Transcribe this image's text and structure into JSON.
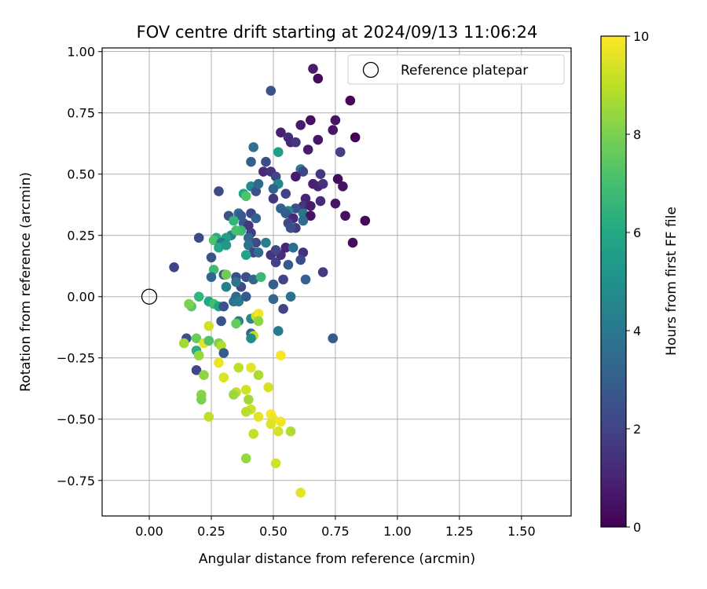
{
  "chart_data": {
    "type": "scatter",
    "title": "FOV centre drift starting at 2024/09/13 11:06:24",
    "xlabel": "Angular distance from reference (arcmin)",
    "ylabel": "Rotation from reference (arcmin)",
    "xlim": [
      -0.19,
      1.7
    ],
    "ylim": [
      -0.895,
      1.015
    ],
    "xticks": [
      0.0,
      0.25,
      0.5,
      0.75,
      1.0,
      1.25,
      1.5
    ],
    "xtick_labels": [
      "0.00",
      "0.25",
      "0.50",
      "0.75",
      "1.00",
      "1.25",
      "1.50"
    ],
    "yticks": [
      -0.75,
      -0.5,
      -0.25,
      0.0,
      0.25,
      0.5,
      0.75,
      1.0
    ],
    "ytick_labels": [
      "−0.75",
      "−0.50",
      "−0.25",
      "0.00",
      "0.25",
      "0.50",
      "0.75",
      "1.00"
    ],
    "grid": true,
    "legend": {
      "position": "top-right",
      "label": "Reference platepar"
    },
    "reference_point": {
      "x": 0.0,
      "y": 0.0
    },
    "colorbar": {
      "label": "Hours from first FF file",
      "colormap": "viridis",
      "range": [
        0,
        10
      ],
      "ticks": [
        0,
        2,
        4,
        6,
        8,
        10
      ],
      "tick_labels": [
        "0",
        "2",
        "4",
        "6",
        "8",
        "10"
      ]
    },
    "points": [
      {
        "x": 0.66,
        "y": 0.93,
        "h": 0.8
      },
      {
        "x": 0.68,
        "y": 0.89,
        "h": 0.3
      },
      {
        "x": 0.81,
        "y": 0.8,
        "h": 0.2
      },
      {
        "x": 0.49,
        "y": 0.84,
        "h": 2.6
      },
      {
        "x": 0.75,
        "y": 0.72,
        "h": 0.5
      },
      {
        "x": 0.74,
        "y": 0.68,
        "h": 0.6
      },
      {
        "x": 0.83,
        "y": 0.65,
        "h": 0.1
      },
      {
        "x": 0.65,
        "y": 0.72,
        "h": 0.4
      },
      {
        "x": 0.61,
        "y": 0.7,
        "h": 0.7
      },
      {
        "x": 0.53,
        "y": 0.67,
        "h": 0.9
      },
      {
        "x": 0.56,
        "y": 0.65,
        "h": 1.3
      },
      {
        "x": 0.57,
        "y": 0.63,
        "h": 1.1
      },
      {
        "x": 0.59,
        "y": 0.63,
        "h": 1.5
      },
      {
        "x": 0.68,
        "y": 0.64,
        "h": 0.6
      },
      {
        "x": 0.64,
        "y": 0.6,
        "h": 0.8
      },
      {
        "x": 0.77,
        "y": 0.59,
        "h": 1.9
      },
      {
        "x": 0.52,
        "y": 0.59,
        "h": 5.5
      },
      {
        "x": 0.42,
        "y": 0.61,
        "h": 3.7
      },
      {
        "x": 0.47,
        "y": 0.55,
        "h": 2.3
      },
      {
        "x": 0.41,
        "y": 0.55,
        "h": 3.0
      },
      {
        "x": 0.46,
        "y": 0.51,
        "h": 1.2
      },
      {
        "x": 0.49,
        "y": 0.51,
        "h": 1.4
      },
      {
        "x": 0.51,
        "y": 0.49,
        "h": 2.1
      },
      {
        "x": 0.61,
        "y": 0.52,
        "h": 4.2
      },
      {
        "x": 0.62,
        "y": 0.51,
        "h": 2.0
      },
      {
        "x": 0.59,
        "y": 0.49,
        "h": 0.7
      },
      {
        "x": 0.69,
        "y": 0.5,
        "h": 1.6
      },
      {
        "x": 0.76,
        "y": 0.48,
        "h": 0.3
      },
      {
        "x": 0.78,
        "y": 0.45,
        "h": 0.5
      },
      {
        "x": 0.66,
        "y": 0.46,
        "h": 0.9
      },
      {
        "x": 0.68,
        "y": 0.45,
        "h": 1.0
      },
      {
        "x": 0.7,
        "y": 0.46,
        "h": 1.4
      },
      {
        "x": 0.52,
        "y": 0.46,
        "h": 4.6
      },
      {
        "x": 0.5,
        "y": 0.44,
        "h": 3.2
      },
      {
        "x": 0.41,
        "y": 0.45,
        "h": 4.7
      },
      {
        "x": 0.43,
        "y": 0.43,
        "h": 2.6
      },
      {
        "x": 0.44,
        "y": 0.46,
        "h": 3.4
      },
      {
        "x": 0.38,
        "y": 0.42,
        "h": 5.9
      },
      {
        "x": 0.39,
        "y": 0.41,
        "h": 7.2
      },
      {
        "x": 0.28,
        "y": 0.43,
        "h": 2.3
      },
      {
        "x": 0.55,
        "y": 0.42,
        "h": 1.9
      },
      {
        "x": 0.5,
        "y": 0.4,
        "h": 1.6
      },
      {
        "x": 0.63,
        "y": 0.4,
        "h": 1.0
      },
      {
        "x": 0.69,
        "y": 0.39,
        "h": 1.2
      },
      {
        "x": 0.75,
        "y": 0.38,
        "h": 0.6
      },
      {
        "x": 0.62,
        "y": 0.37,
        "h": 1.5
      },
      {
        "x": 0.65,
        "y": 0.37,
        "h": 0.8
      },
      {
        "x": 0.59,
        "y": 0.36,
        "h": 2.5
      },
      {
        "x": 0.56,
        "y": 0.35,
        "h": 4.5
      },
      {
        "x": 0.53,
        "y": 0.36,
        "h": 3.1
      },
      {
        "x": 0.55,
        "y": 0.34,
        "h": 2.9
      },
      {
        "x": 0.62,
        "y": 0.34,
        "h": 3.9
      },
      {
        "x": 0.65,
        "y": 0.33,
        "h": 0.5
      },
      {
        "x": 0.79,
        "y": 0.33,
        "h": 0.4
      },
      {
        "x": 0.87,
        "y": 0.31,
        "h": 0.2
      },
      {
        "x": 0.62,
        "y": 0.31,
        "h": 3.5
      },
      {
        "x": 0.58,
        "y": 0.32,
        "h": 1.2
      },
      {
        "x": 0.56,
        "y": 0.3,
        "h": 2.2
      },
      {
        "x": 0.59,
        "y": 0.28,
        "h": 1.7
      },
      {
        "x": 0.57,
        "y": 0.28,
        "h": 2.4
      },
      {
        "x": 0.36,
        "y": 0.34,
        "h": 3.6
      },
      {
        "x": 0.37,
        "y": 0.33,
        "h": 2.8
      },
      {
        "x": 0.41,
        "y": 0.34,
        "h": 2.1
      },
      {
        "x": 0.32,
        "y": 0.33,
        "h": 2.5
      },
      {
        "x": 0.43,
        "y": 0.32,
        "h": 3.1
      },
      {
        "x": 0.34,
        "y": 0.31,
        "h": 6.5
      },
      {
        "x": 0.38,
        "y": 0.3,
        "h": 2.9
      },
      {
        "x": 0.4,
        "y": 0.29,
        "h": 1.6
      },
      {
        "x": 0.37,
        "y": 0.27,
        "h": 6.7
      },
      {
        "x": 0.41,
        "y": 0.26,
        "h": 1.8
      },
      {
        "x": 0.33,
        "y": 0.25,
        "h": 4.4
      },
      {
        "x": 0.35,
        "y": 0.27,
        "h": 7.0
      },
      {
        "x": 0.27,
        "y": 0.24,
        "h": 6.1
      },
      {
        "x": 0.26,
        "y": 0.23,
        "h": 7.1
      },
      {
        "x": 0.2,
        "y": 0.24,
        "h": 2.2
      },
      {
        "x": 0.31,
        "y": 0.24,
        "h": 5.6
      },
      {
        "x": 0.29,
        "y": 0.22,
        "h": 4.0
      },
      {
        "x": 0.28,
        "y": 0.2,
        "h": 6.0
      },
      {
        "x": 0.31,
        "y": 0.21,
        "h": 5.3
      },
      {
        "x": 0.4,
        "y": 0.24,
        "h": 3.3
      },
      {
        "x": 0.43,
        "y": 0.22,
        "h": 2.2
      },
      {
        "x": 0.47,
        "y": 0.22,
        "h": 4.2
      },
      {
        "x": 0.4,
        "y": 0.21,
        "h": 3.8
      },
      {
        "x": 0.42,
        "y": 0.18,
        "h": 2.0
      },
      {
        "x": 0.39,
        "y": 0.17,
        "h": 5.8
      },
      {
        "x": 0.44,
        "y": 0.18,
        "h": 3.5
      },
      {
        "x": 0.49,
        "y": 0.17,
        "h": 1.5
      },
      {
        "x": 0.53,
        "y": 0.17,
        "h": 1.3
      },
      {
        "x": 0.51,
        "y": 0.19,
        "h": 2.1
      },
      {
        "x": 0.55,
        "y": 0.2,
        "h": 1.0
      },
      {
        "x": 0.58,
        "y": 0.2,
        "h": 3.6
      },
      {
        "x": 0.62,
        "y": 0.18,
        "h": 1.4
      },
      {
        "x": 0.61,
        "y": 0.15,
        "h": 2.3
      },
      {
        "x": 0.56,
        "y": 0.13,
        "h": 2.8
      },
      {
        "x": 0.51,
        "y": 0.14,
        "h": 1.9
      },
      {
        "x": 0.82,
        "y": 0.22,
        "h": 0.3
      },
      {
        "x": 0.25,
        "y": 0.16,
        "h": 2.6
      },
      {
        "x": 0.1,
        "y": 0.12,
        "h": 2.0
      },
      {
        "x": 0.26,
        "y": 0.11,
        "h": 6.8
      },
      {
        "x": 0.3,
        "y": 0.09,
        "h": 2.7
      },
      {
        "x": 0.31,
        "y": 0.09,
        "h": 7.8
      },
      {
        "x": 0.35,
        "y": 0.08,
        "h": 2.3
      },
      {
        "x": 0.39,
        "y": 0.08,
        "h": 2.4
      },
      {
        "x": 0.42,
        "y": 0.07,
        "h": 3.3
      },
      {
        "x": 0.45,
        "y": 0.08,
        "h": 6.7
      },
      {
        "x": 0.25,
        "y": 0.08,
        "h": 3.3
      },
      {
        "x": 0.5,
        "y": 0.05,
        "h": 3.0
      },
      {
        "x": 0.54,
        "y": 0.07,
        "h": 2.0
      },
      {
        "x": 0.63,
        "y": 0.07,
        "h": 3.1
      },
      {
        "x": 0.7,
        "y": 0.1,
        "h": 1.7
      },
      {
        "x": 0.37,
        "y": 0.04,
        "h": 2.2
      },
      {
        "x": 0.35,
        "y": 0.06,
        "h": 3.8
      },
      {
        "x": 0.31,
        "y": 0.04,
        "h": 4.3
      },
      {
        "x": 0.2,
        "y": 0.0,
        "h": 6.5
      },
      {
        "x": 0.24,
        "y": -0.02,
        "h": 6.0
      },
      {
        "x": 0.26,
        "y": -0.03,
        "h": 6.9
      },
      {
        "x": 0.28,
        "y": -0.04,
        "h": 5.8
      },
      {
        "x": 0.3,
        "y": -0.04,
        "h": 2.5
      },
      {
        "x": 0.34,
        "y": -0.02,
        "h": 3.8
      },
      {
        "x": 0.35,
        "y": 0.0,
        "h": 3.4
      },
      {
        "x": 0.36,
        "y": -0.02,
        "h": 4.1
      },
      {
        "x": 0.39,
        "y": 0.0,
        "h": 2.8
      },
      {
        "x": 0.5,
        "y": -0.01,
        "h": 3.4
      },
      {
        "x": 0.57,
        "y": 0.0,
        "h": 3.7
      },
      {
        "x": 0.54,
        "y": -0.05,
        "h": 2.0
      },
      {
        "x": 0.17,
        "y": -0.04,
        "h": 7.4
      },
      {
        "x": 0.16,
        "y": -0.03,
        "h": 8.0
      },
      {
        "x": 0.29,
        "y": -0.1,
        "h": 2.6
      },
      {
        "x": 0.36,
        "y": -0.1,
        "h": 4.3
      },
      {
        "x": 0.35,
        "y": -0.11,
        "h": 7.6
      },
      {
        "x": 0.41,
        "y": -0.09,
        "h": 4.5
      },
      {
        "x": 0.43,
        "y": -0.08,
        "h": 9.2
      },
      {
        "x": 0.44,
        "y": -0.07,
        "h": 9.8
      },
      {
        "x": 0.44,
        "y": -0.1,
        "h": 8.3
      },
      {
        "x": 0.41,
        "y": -0.15,
        "h": 3.2
      },
      {
        "x": 0.52,
        "y": -0.14,
        "h": 4.0
      },
      {
        "x": 0.42,
        "y": -0.16,
        "h": 9.0
      },
      {
        "x": 0.41,
        "y": -0.17,
        "h": 4.7
      },
      {
        "x": 0.74,
        "y": -0.17,
        "h": 2.8
      },
      {
        "x": 0.15,
        "y": -0.17,
        "h": 2.4
      },
      {
        "x": 0.14,
        "y": -0.19,
        "h": 8.6
      },
      {
        "x": 0.19,
        "y": -0.17,
        "h": 7.7
      },
      {
        "x": 0.22,
        "y": -0.19,
        "h": 9.6
      },
      {
        "x": 0.24,
        "y": -0.12,
        "h": 9.3
      },
      {
        "x": 0.24,
        "y": -0.18,
        "h": 7.2
      },
      {
        "x": 0.28,
        "y": -0.19,
        "h": 8.0
      },
      {
        "x": 0.29,
        "y": -0.2,
        "h": 8.8
      },
      {
        "x": 0.19,
        "y": -0.22,
        "h": 6.3
      },
      {
        "x": 0.2,
        "y": -0.24,
        "h": 8.4
      },
      {
        "x": 0.3,
        "y": -0.23,
        "h": 2.9
      },
      {
        "x": 0.53,
        "y": -0.24,
        "h": 9.9
      },
      {
        "x": 0.19,
        "y": -0.3,
        "h": 2.1
      },
      {
        "x": 0.28,
        "y": -0.27,
        "h": 9.7
      },
      {
        "x": 0.36,
        "y": -0.29,
        "h": 9.0
      },
      {
        "x": 0.41,
        "y": -0.29,
        "h": 9.6
      },
      {
        "x": 0.22,
        "y": -0.32,
        "h": 8.3
      },
      {
        "x": 0.3,
        "y": -0.33,
        "h": 9.5
      },
      {
        "x": 0.44,
        "y": -0.32,
        "h": 8.7
      },
      {
        "x": 0.48,
        "y": -0.37,
        "h": 9.4
      },
      {
        "x": 0.35,
        "y": -0.39,
        "h": 9.1
      },
      {
        "x": 0.34,
        "y": -0.4,
        "h": 8.5
      },
      {
        "x": 0.39,
        "y": -0.38,
        "h": 9.3
      },
      {
        "x": 0.21,
        "y": -0.4,
        "h": 8.2
      },
      {
        "x": 0.21,
        "y": -0.42,
        "h": 8.0
      },
      {
        "x": 0.4,
        "y": -0.42,
        "h": 8.6
      },
      {
        "x": 0.41,
        "y": -0.46,
        "h": 9.2
      },
      {
        "x": 0.39,
        "y": -0.47,
        "h": 8.9
      },
      {
        "x": 0.44,
        "y": -0.49,
        "h": 9.6
      },
      {
        "x": 0.24,
        "y": -0.49,
        "h": 9.0
      },
      {
        "x": 0.49,
        "y": -0.48,
        "h": 9.9
      },
      {
        "x": 0.5,
        "y": -0.5,
        "h": 9.7
      },
      {
        "x": 0.49,
        "y": -0.52,
        "h": 9.5
      },
      {
        "x": 0.53,
        "y": -0.51,
        "h": 9.8
      },
      {
        "x": 0.52,
        "y": -0.55,
        "h": 9.4
      },
      {
        "x": 0.42,
        "y": -0.56,
        "h": 9.1
      },
      {
        "x": 0.57,
        "y": -0.55,
        "h": 8.8
      },
      {
        "x": 0.39,
        "y": -0.66,
        "h": 8.4
      },
      {
        "x": 0.51,
        "y": -0.68,
        "h": 9.3
      },
      {
        "x": 0.61,
        "y": -0.8,
        "h": 9.6
      }
    ]
  }
}
